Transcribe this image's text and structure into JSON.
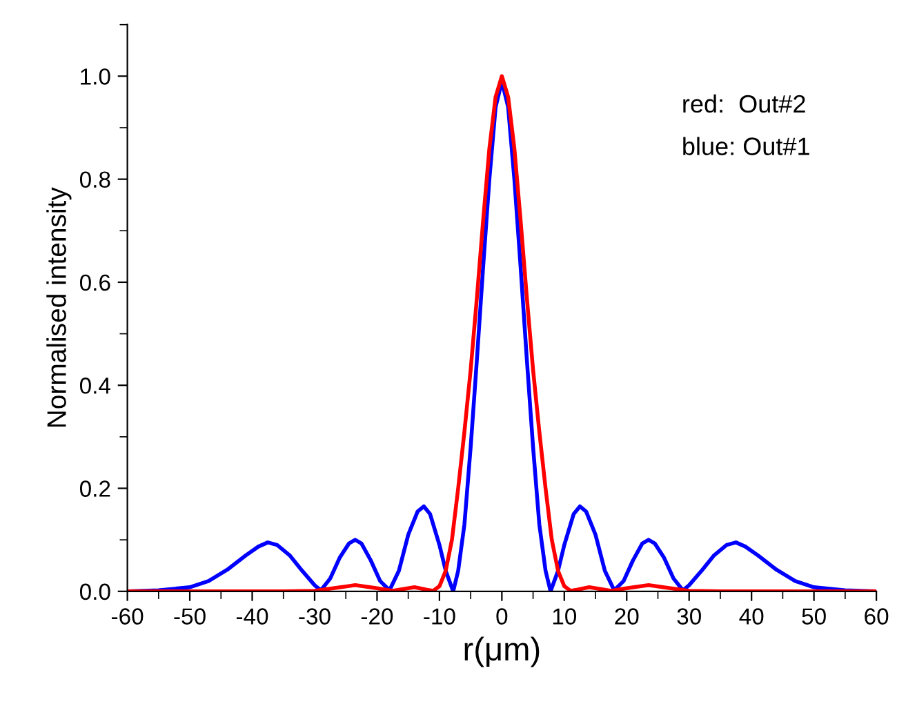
{
  "chart_data": {
    "type": "line",
    "xlabel": "r(μm)",
    "ylabel": "Normalised intensity",
    "annotations": [
      "red:  Out#2",
      "blue: Out#1"
    ],
    "xlim": [
      -60,
      60
    ],
    "xticks": [
      -60,
      -50,
      -40,
      -30,
      -20,
      -10,
      0,
      10,
      20,
      30,
      40,
      50,
      60
    ],
    "ylim": [
      0,
      1.1
    ],
    "yticks": [
      {
        "value": 0,
        "label": "0.0"
      },
      0.2,
      0.4,
      0.6,
      0.8,
      {
        "value": 1,
        "label": "1.0"
      }
    ],
    "grid": false,
    "legend": false,
    "marker": "none",
    "line_style": "solid",
    "series": [
      {
        "color": "#0000ff",
        "x": [
          -60,
          -55,
          -50,
          -47,
          -44,
          -41,
          -39,
          -37.5,
          -36,
          -34,
          -32,
          -30,
          -29,
          -27.5,
          -26,
          -24.5,
          -23.5,
          -22.5,
          -21,
          -19.5,
          -18,
          -16.5,
          -15,
          -13.5,
          -12.5,
          -11.5,
          -10,
          -9,
          -7.8,
          -7,
          -6,
          -5,
          -4,
          -3,
          -2,
          -1,
          0,
          1,
          2,
          3,
          4,
          5,
          6,
          7,
          7.8,
          9,
          10,
          11.5,
          12.5,
          13.5,
          15,
          16.5,
          18,
          19.5,
          21,
          22.5,
          23.5,
          24.5,
          26,
          27.5,
          29,
          30,
          32,
          34,
          36,
          37.5,
          39,
          41,
          44,
          47,
          50,
          55,
          60
        ],
        "values": [
          0,
          0.002,
          0.008,
          0.02,
          0.042,
          0.07,
          0.087,
          0.095,
          0.09,
          0.07,
          0.04,
          0.012,
          0.002,
          0.025,
          0.065,
          0.093,
          0.1,
          0.093,
          0.06,
          0.02,
          0.002,
          0.04,
          0.11,
          0.155,
          0.165,
          0.15,
          0.09,
          0.04,
          0.0,
          0.04,
          0.13,
          0.28,
          0.45,
          0.63,
          0.8,
          0.94,
          0.99,
          0.94,
          0.8,
          0.63,
          0.45,
          0.28,
          0.13,
          0.04,
          0.0,
          0.04,
          0.09,
          0.15,
          0.165,
          0.155,
          0.11,
          0.04,
          0.002,
          0.02,
          0.06,
          0.093,
          0.1,
          0.093,
          0.065,
          0.025,
          0.002,
          0.012,
          0.04,
          0.07,
          0.09,
          0.095,
          0.087,
          0.07,
          0.042,
          0.02,
          0.008,
          0.002,
          0
        ]
      },
      {
        "color": "#ff0000",
        "x": [
          -60,
          -35,
          -30,
          -27,
          -23.5,
          -20,
          -17.5,
          -16,
          -14,
          -12,
          -11,
          -10,
          -9,
          -8,
          -7,
          -6,
          -5,
          -4,
          -3,
          -2,
          -1,
          0,
          1,
          2,
          3,
          4,
          5,
          6,
          7,
          8,
          9,
          10,
          11,
          12,
          14,
          16,
          17.5,
          20,
          23.5,
          27,
          30,
          35,
          60
        ],
        "values": [
          0,
          0,
          0.001,
          0.006,
          0.012,
          0.006,
          0.001,
          0.004,
          0.008,
          0.003,
          0.001,
          0.01,
          0.04,
          0.1,
          0.2,
          0.31,
          0.43,
          0.57,
          0.72,
          0.86,
          0.96,
          1.0,
          0.96,
          0.86,
          0.72,
          0.57,
          0.43,
          0.31,
          0.2,
          0.1,
          0.04,
          0.01,
          0.001,
          0.003,
          0.008,
          0.004,
          0.001,
          0.006,
          0.012,
          0.006,
          0.001,
          0,
          0
        ]
      }
    ]
  }
}
